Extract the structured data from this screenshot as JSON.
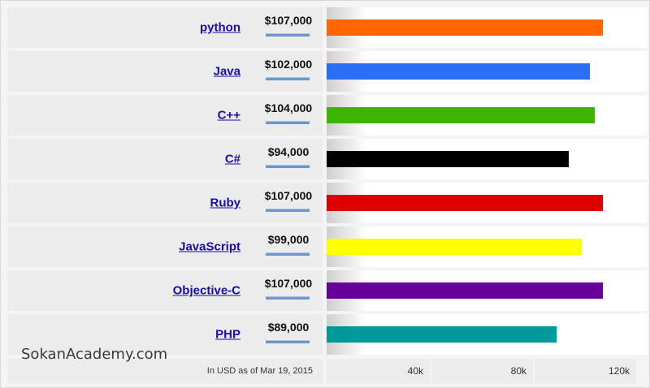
{
  "chart_data": {
    "type": "bar",
    "orientation": "horizontal",
    "categories": [
      "python",
      "Java",
      "C++",
      "C#",
      "Ruby",
      "JavaScript",
      "Objective-C",
      "PHP"
    ],
    "values": [
      107000,
      102000,
      104000,
      94000,
      107000,
      99000,
      107000,
      89000
    ],
    "value_labels": [
      "$107,000",
      "$102,000",
      "$104,000",
      "$94,000",
      "$107,000",
      "$99,000",
      "$107,000",
      "$89,000"
    ],
    "colors": [
      "#ff6600",
      "#2a6ff3",
      "#3db500",
      "#000000",
      "#dd0000",
      "#ffff00",
      "#660099",
      "#009999"
    ],
    "xlim": [
      0,
      120000
    ],
    "x_ticks": [
      "40k",
      "80k",
      "120k"
    ],
    "x_tick_values": [
      40000,
      80000,
      120000
    ],
    "note": "In USD as of Mar 19, 2015",
    "grid": false
  },
  "watermark": "SokanAcademy.com"
}
